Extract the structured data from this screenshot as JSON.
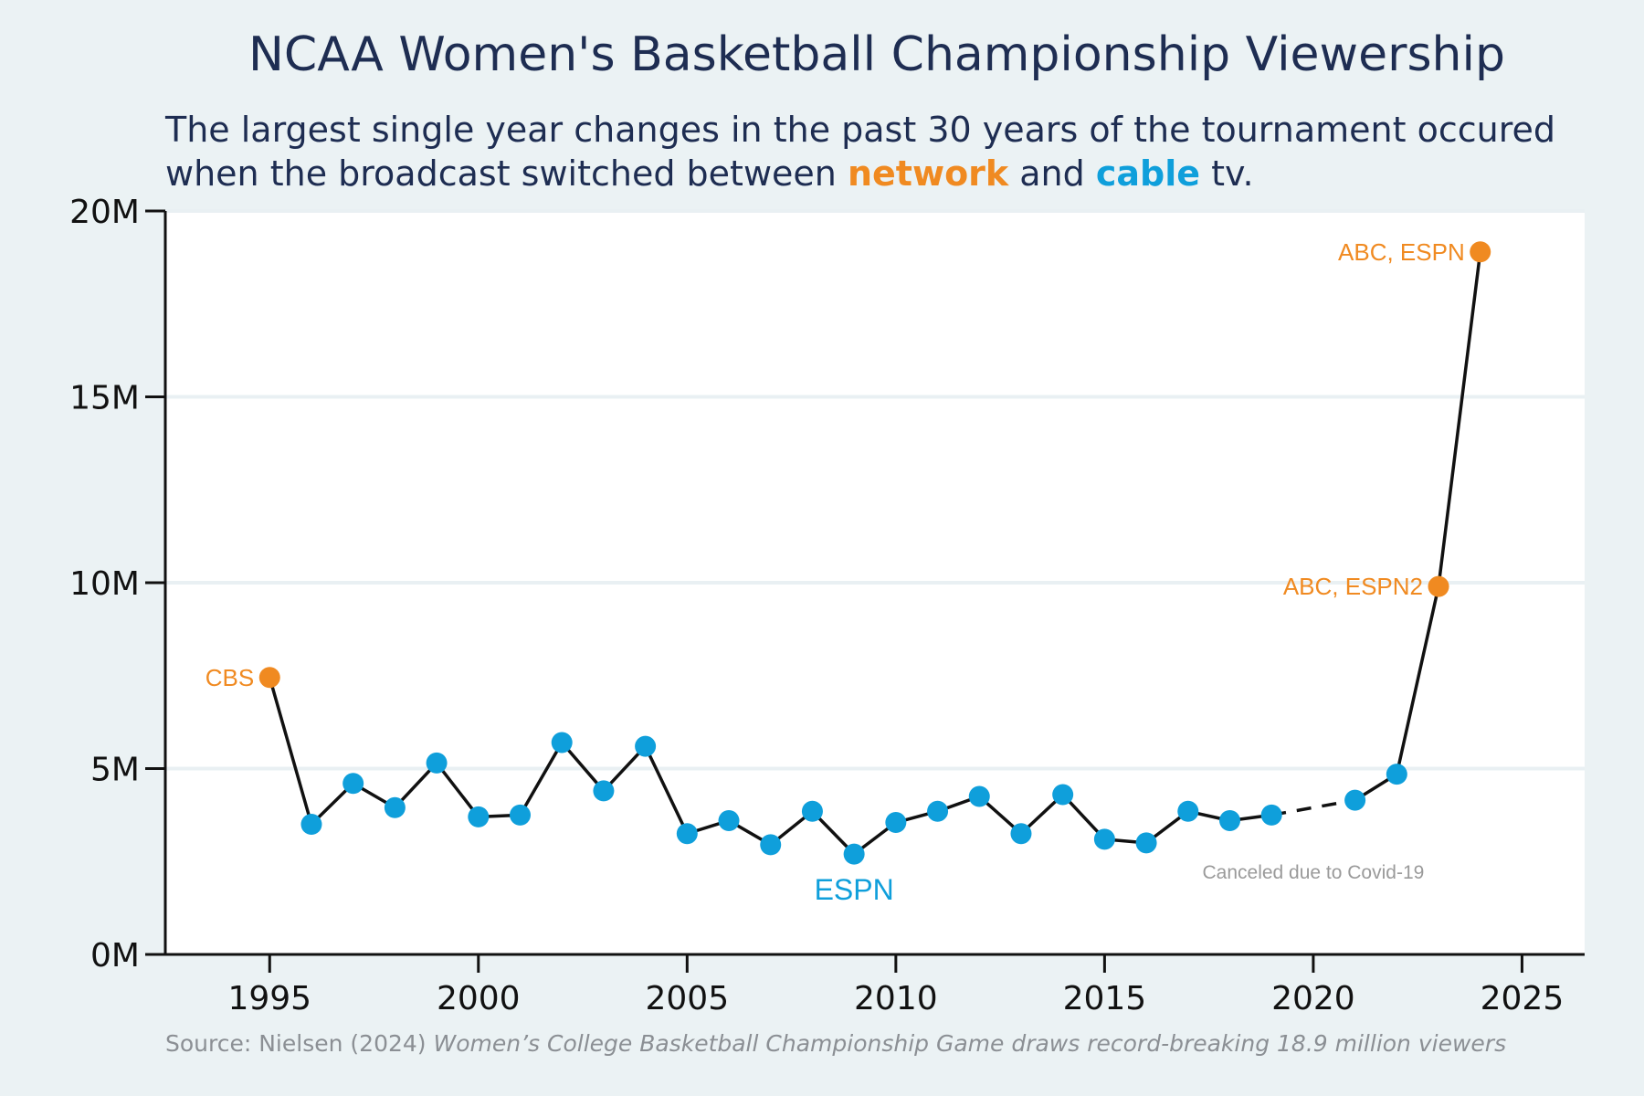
{
  "title": "NCAA Women's Basketball Championship Viewership",
  "subtitle": {
    "line1": "The largest single year changes in the past 30 years of the tournament occured",
    "line2_before": "when the broadcast switched between ",
    "network_word": "network",
    "line2_middle": " and ",
    "cable_word": "cable",
    "line2_after": " tv."
  },
  "source": {
    "prefix": "Source: Nielsen (2024) ",
    "title": "Women’s College Basketball Championship Game draws record-breaking 18.9 million viewers"
  },
  "colors": {
    "network": "#f08a21",
    "cable": "#0f9fdb",
    "line": "#111111",
    "grid": "#e9f0f3",
    "plot_bg": "#ffffff",
    "page_bg": "#ebf2f4",
    "note": "#9a9a9a"
  },
  "chart_data": {
    "type": "line",
    "title": "NCAA Women's Basketball Championship Viewership",
    "xlabel": "",
    "ylabel": "",
    "xlim": [
      1992.5,
      2026.5
    ],
    "ylim": [
      0,
      20000000
    ],
    "x_ticks": [
      1995,
      2000,
      2005,
      2010,
      2015,
      2020,
      2025
    ],
    "x_tick_labels": [
      "1995",
      "2000",
      "2005",
      "2010",
      "2015",
      "2020",
      "2025"
    ],
    "y_ticks": [
      0,
      5000000,
      10000000,
      15000000,
      20000000
    ],
    "y_tick_labels": [
      "0M",
      "5M",
      "10M",
      "15M",
      "20M"
    ],
    "grid": "horizontal",
    "series": [
      {
        "points": [
          {
            "year": 1995,
            "viewers": 7450000,
            "broadcast": "network"
          },
          {
            "year": 1996,
            "viewers": 3500000,
            "broadcast": "cable"
          },
          {
            "year": 1997,
            "viewers": 4600000,
            "broadcast": "cable"
          },
          {
            "year": 1998,
            "viewers": 3950000,
            "broadcast": "cable"
          },
          {
            "year": 1999,
            "viewers": 5150000,
            "broadcast": "cable"
          },
          {
            "year": 2000,
            "viewers": 3700000,
            "broadcast": "cable"
          },
          {
            "year": 2001,
            "viewers": 3750000,
            "broadcast": "cable"
          },
          {
            "year": 2002,
            "viewers": 5700000,
            "broadcast": "cable"
          },
          {
            "year": 2003,
            "viewers": 4400000,
            "broadcast": "cable"
          },
          {
            "year": 2004,
            "viewers": 5600000,
            "broadcast": "cable"
          },
          {
            "year": 2005,
            "viewers": 3250000,
            "broadcast": "cable"
          },
          {
            "year": 2006,
            "viewers": 3600000,
            "broadcast": "cable"
          },
          {
            "year": 2007,
            "viewers": 2950000,
            "broadcast": "cable"
          },
          {
            "year": 2008,
            "viewers": 3850000,
            "broadcast": "cable"
          },
          {
            "year": 2009,
            "viewers": 2700000,
            "broadcast": "cable"
          },
          {
            "year": 2010,
            "viewers": 3550000,
            "broadcast": "cable"
          },
          {
            "year": 2011,
            "viewers": 3850000,
            "broadcast": "cable"
          },
          {
            "year": 2012,
            "viewers": 4250000,
            "broadcast": "cable"
          },
          {
            "year": 2013,
            "viewers": 3250000,
            "broadcast": "cable"
          },
          {
            "year": 2014,
            "viewers": 4300000,
            "broadcast": "cable"
          },
          {
            "year": 2015,
            "viewers": 3100000,
            "broadcast": "cable"
          },
          {
            "year": 2016,
            "viewers": 3000000,
            "broadcast": "cable"
          },
          {
            "year": 2017,
            "viewers": 3850000,
            "broadcast": "cable"
          },
          {
            "year": 2018,
            "viewers": 3600000,
            "broadcast": "cable"
          },
          {
            "year": 2019,
            "viewers": 3750000,
            "broadcast": "cable"
          },
          {
            "year": 2021,
            "viewers": 4150000,
            "broadcast": "cable"
          },
          {
            "year": 2022,
            "viewers": 4850000,
            "broadcast": "cable"
          },
          {
            "year": 2023,
            "viewers": 9900000,
            "broadcast": "network"
          },
          {
            "year": 2024,
            "viewers": 18900000,
            "broadcast": "network"
          }
        ]
      }
    ],
    "gap": {
      "from": 2019,
      "to": 2021,
      "style": "dashed"
    },
    "annotations": [
      {
        "text": "CBS",
        "year": 1995,
        "color": "network",
        "anchor": "left-of-point"
      },
      {
        "text": "ABC, ESPN2",
        "year": 2023,
        "color": "network",
        "anchor": "left-of-point"
      },
      {
        "text": "ABC, ESPN",
        "year": 2024,
        "color": "network",
        "anchor": "left-of-point"
      },
      {
        "text": "ESPN",
        "year": 2009,
        "color": "cable",
        "anchor": "below-point"
      },
      {
        "text": "Canceled due to Covid-19",
        "year": 2020,
        "color": "note",
        "anchor": "note"
      }
    ]
  }
}
